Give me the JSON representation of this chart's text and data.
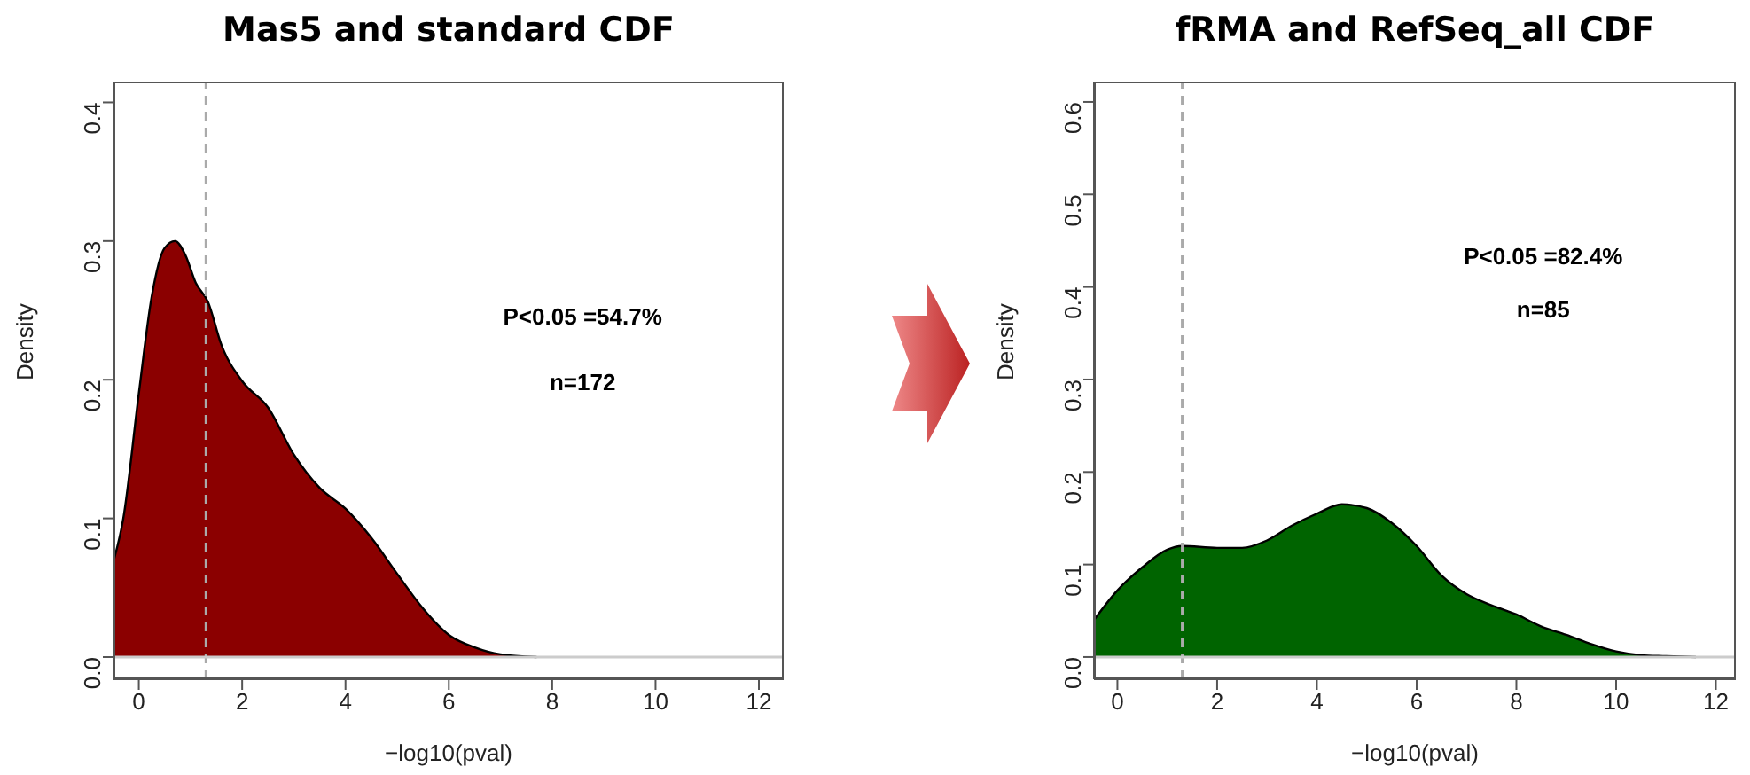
{
  "chart_data": [
    {
      "type": "area",
      "title": "Mas5 and standard CDF",
      "xlabel": "−log10(pval)",
      "ylabel": "Density",
      "xlim": [
        -0.49,
        12.48
      ],
      "xticks": [
        0,
        2,
        4,
        6,
        8,
        10,
        12
      ],
      "ylim": [
        -0.016,
        0.415
      ],
      "yticks": [
        {
          "value": 0,
          "label": "0.0"
        },
        0.1,
        0.2,
        0.3,
        0.4
      ],
      "series": [
        {
          "color": "#8b0000",
          "x": [
            -0.49,
            -0.3,
            0,
            0.25,
            0.5,
            0.7,
            0.9,
            1.1,
            1.34,
            1.6,
            2,
            2.5,
            3,
            3.5,
            4,
            4.5,
            5,
            5.5,
            6,
            6.5,
            7,
            7.7
          ],
          "values": [
            0.069,
            0.1,
            0.19,
            0.26,
            0.295,
            0.3,
            0.29,
            0.27,
            0.256,
            0.225,
            0.199,
            0.18,
            0.146,
            0.122,
            0.107,
            0.086,
            0.06,
            0.035,
            0.016,
            0.007,
            0.002,
            0
          ]
        }
      ],
      "ref_lines": [
        {
          "axis": "x",
          "value": 1.3,
          "color": "#aaaaaa",
          "line_style": "dashed"
        },
        {
          "axis": "y",
          "value": 0,
          "color": "#cccccc",
          "line_style": "solid"
        }
      ],
      "annotations": [
        "P<0.05 =54.7%",
        "n=172"
      ]
    },
    {
      "type": "area",
      "title": "fRMA and RefSeq_all CDF",
      "xlabel": "−log10(pval)",
      "ylabel": "Density",
      "xlim": [
        -0.47,
        12.4
      ],
      "xticks": [
        0,
        2,
        4,
        6,
        8,
        10,
        12
      ],
      "ylim": [
        -0.024,
        0.622
      ],
      "yticks": [
        {
          "value": 0,
          "label": "0.0"
        },
        0.1,
        0.2,
        0.3,
        0.4,
        0.5,
        0.6
      ],
      "series": [
        {
          "color": "#006400",
          "x": [
            -0.47,
            0,
            0.5,
            1,
            1.3,
            2,
            2.5,
            3,
            3.5,
            4,
            4.5,
            5,
            5.5,
            6,
            6.5,
            7,
            7.5,
            8,
            8.5,
            9,
            9.5,
            10,
            10.5,
            11,
            11.6
          ],
          "values": [
            0.04,
            0.072,
            0.097,
            0.116,
            0.12,
            0.118,
            0.118,
            0.126,
            0.142,
            0.155,
            0.165,
            0.161,
            0.145,
            0.12,
            0.088,
            0.068,
            0.056,
            0.046,
            0.033,
            0.024,
            0.014,
            0.006,
            0.002,
            0.001,
            0
          ]
        }
      ],
      "ref_lines": [
        {
          "axis": "x",
          "value": 1.3,
          "color": "#aaaaaa",
          "line_style": "dashed"
        },
        {
          "axis": "y",
          "value": 0,
          "color": "#cccccc",
          "line_style": "solid"
        }
      ],
      "annotations": [
        "P<0.05 =82.4%",
        "n=85"
      ]
    }
  ]
}
